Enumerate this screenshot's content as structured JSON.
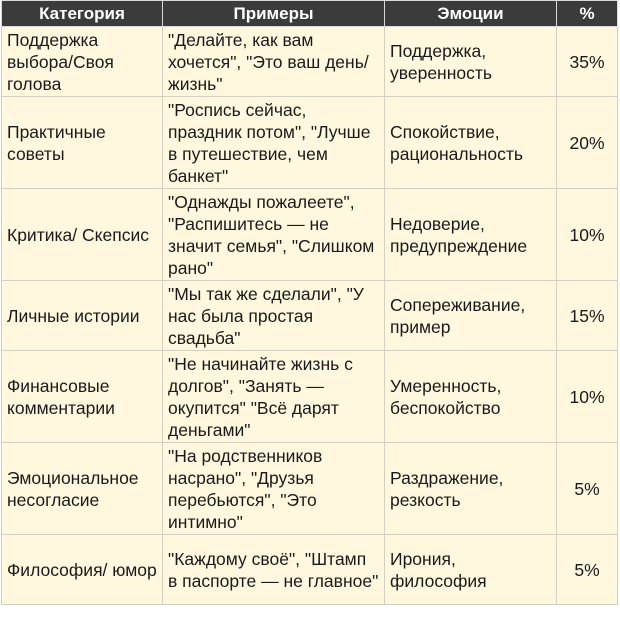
{
  "table": {
    "headers": [
      "Категория",
      "Примеры",
      "Эмоции",
      "%"
    ],
    "rows": [
      {
        "category": "Поддержка выбора/Своя голова",
        "examples": "\"Делайте, как вам хочется\", \"Это ваш день/жизнь\"",
        "emotions": "Поддержка, уверенность",
        "percent": "35%"
      },
      {
        "category": "Практичные советы",
        "examples": "\"Роспись сейчас, праздник потом\", \"Лучше в путешествие, чем банкет\"",
        "emotions": "Спокойствие, рациональность",
        "percent": "20%"
      },
      {
        "category": "Критика/ Скепсис",
        "examples": "\"Однажды пожалеете\", \"Распишитесь — не значит семья\", \"Слишком рано\"",
        "emotions": "Недоверие, предупреждение",
        "percent": "10%"
      },
      {
        "category": "Личные истории",
        "examples": "\"Мы так же сделали\", \"У нас была простая свадьба\"",
        "emotions": "Сопереживание, пример",
        "percent": "15%"
      },
      {
        "category": "Финансовые комментарии",
        "examples": "\"Не начинайте жизнь с долгов\", \"Занять — окупится\" \"Всё дарят деньгами\"",
        "emotions": "Умеренность, беспокойство",
        "percent": "10%"
      },
      {
        "category": "Эмоциональное несогласие",
        "examples": "\"На родственников насрано\", \"Друзья перебьются\", \"Это интимно\"",
        "emotions": "Раздражение, резкость",
        "percent": "5%"
      },
      {
        "category": "Философия/ юмор",
        "examples": "\"Каждому своё\", \"Штамп в паспорте — не главное\"",
        "emotions": "Ирония, философия",
        "percent": "5%"
      }
    ]
  }
}
